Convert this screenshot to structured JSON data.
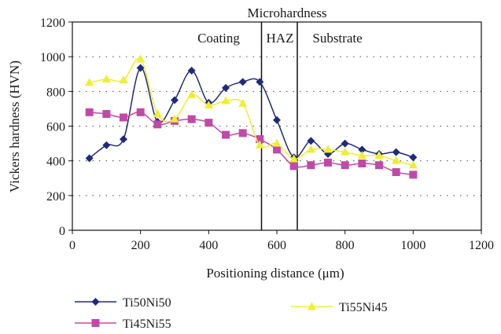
{
  "chart_data": {
    "type": "line",
    "title": "Microhardness",
    "xlabel": "Positioning distance (μm)",
    "ylabel": "Vickers hardness (HVN)",
    "xlim": [
      0,
      1200
    ],
    "ylim": [
      0,
      1200
    ],
    "xticks": [
      0,
      200,
      400,
      600,
      800,
      1000,
      1200
    ],
    "yticks": [
      0,
      200,
      400,
      600,
      800,
      1000,
      1200
    ],
    "grid": "horizontal dotted",
    "legend_position": "bottom",
    "regions": [
      {
        "label": "Coating",
        "x_end": 555
      },
      {
        "label": "HAZ",
        "x_start": 555,
        "x_end": 660
      },
      {
        "label": "Substrate",
        "x_start": 660
      }
    ],
    "dividers": [
      555,
      660
    ],
    "series": [
      {
        "name": "Ti50Ni50",
        "color": "#1f2b7a",
        "marker": "diamond",
        "x": [
          50,
          100,
          150,
          200,
          250,
          300,
          350,
          400,
          450,
          500,
          550,
          600,
          650,
          700,
          750,
          800,
          850,
          900,
          950,
          1000
        ],
        "values": [
          415,
          490,
          525,
          935,
          625,
          750,
          920,
          735,
          820,
          855,
          855,
          635,
          420,
          515,
          440,
          500,
          465,
          440,
          450,
          420
        ]
      },
      {
        "name": "Ti45Ni55",
        "color": "#c04aa6",
        "marker": "square",
        "x": [
          50,
          100,
          150,
          200,
          250,
          300,
          350,
          400,
          450,
          500,
          550,
          600,
          650,
          700,
          750,
          800,
          850,
          900,
          950,
          1000
        ],
        "values": [
          680,
          670,
          650,
          680,
          610,
          630,
          640,
          620,
          550,
          560,
          525,
          465,
          370,
          375,
          390,
          375,
          385,
          375,
          335,
          320
        ]
      },
      {
        "name": "Ti55Ni45",
        "color": "#eeee33",
        "marker": "triangle",
        "x": [
          50,
          100,
          150,
          200,
          250,
          300,
          350,
          400,
          450,
          500,
          550,
          600,
          650,
          700,
          750,
          800,
          850,
          900,
          950,
          1000
        ],
        "values": [
          850,
          870,
          865,
          985,
          670,
          640,
          780,
          720,
          745,
          730,
          490,
          500,
          410,
          465,
          465,
          450,
          430,
          430,
          400,
          375
        ]
      }
    ]
  }
}
